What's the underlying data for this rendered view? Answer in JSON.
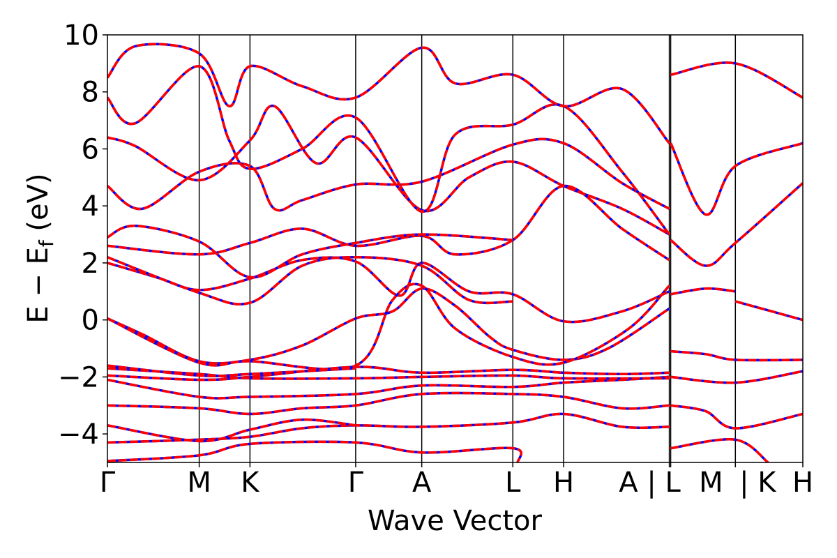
{
  "chart_data": {
    "type": "line",
    "title": "",
    "xlabel": "Wave Vector",
    "ylabel": "E − E",
    "ylabel_sub": "f",
    "ylabel_unit": " (eV)",
    "ylim": [
      -5,
      10
    ],
    "yticks": [
      {
        "value": -4,
        "label": "−4"
      },
      {
        "value": -2,
        "label": "−2"
      },
      {
        "value": 0,
        "label": "0"
      },
      {
        "value": 2,
        "label": "2"
      },
      {
        "value": 4,
        "label": "4"
      },
      {
        "value": 6,
        "label": "6"
      },
      {
        "value": 8,
        "label": "8"
      },
      {
        "value": 10,
        "label": "10"
      }
    ],
    "kpath_ticks": [
      {
        "x": 0.0,
        "label": "Γ"
      },
      {
        "x": 0.132,
        "label": "M"
      },
      {
        "x": 0.205,
        "label": "K"
      },
      {
        "x": 0.357,
        "label": "Γ"
      },
      {
        "x": 0.452,
        "label": "A"
      },
      {
        "x": 0.583,
        "label": "L"
      },
      {
        "x": 0.656,
        "label": "H"
      },
      {
        "x": 0.808,
        "label": "A | L"
      },
      {
        "x": 0.81,
        "label": "M"
      },
      {
        "x": 0.903,
        "label": "| K"
      },
      {
        "x": 1.0,
        "label": "H"
      }
    ],
    "vlines": [
      0.132,
      0.205,
      0.357,
      0.452,
      0.583,
      0.656,
      0.808,
      0.81,
      0.903
    ],
    "grid": false,
    "legend": "none",
    "series_styles": [
      {
        "color": "#0000ff",
        "dash": "solid"
      },
      {
        "color": "#ff0000",
        "dash": "dashed"
      }
    ],
    "bands": [
      [
        [
          0,
          -4.95
        ],
        [
          0.132,
          -4.75
        ],
        [
          0.205,
          -4.35
        ],
        [
          0.357,
          -4.3
        ],
        [
          0.452,
          -4.65
        ],
        [
          0.583,
          -4.5
        ],
        [
          0.59,
          -5.0
        ]
      ],
      [
        [
          0,
          -4.3
        ],
        [
          0.132,
          -4.2
        ],
        [
          0.205,
          -4.1
        ],
        [
          0.28,
          -3.8
        ],
        [
          0.357,
          -3.7
        ],
        [
          0.452,
          -3.75
        ],
        [
          0.583,
          -3.6
        ],
        [
          0.656,
          -3.3
        ],
        [
          0.74,
          -3.75
        ],
        [
          0.808,
          -3.75
        ]
      ],
      [
        [
          0,
          -3.7
        ],
        [
          0.132,
          -4.25
        ],
        [
          0.205,
          -3.85
        ],
        [
          0.28,
          -3.5
        ],
        [
          0.357,
          -3.7
        ]
      ],
      [
        [
          0,
          -3.0
        ],
        [
          0.132,
          -3.1
        ],
        [
          0.205,
          -3.3
        ],
        [
          0.28,
          -3.1
        ],
        [
          0.357,
          -3.0
        ],
        [
          0.452,
          -2.6
        ],
        [
          0.583,
          -2.6
        ],
        [
          0.656,
          -2.7
        ],
        [
          0.74,
          -3.1
        ],
        [
          0.808,
          -3.0
        ]
      ],
      [
        [
          0,
          -2.1
        ],
        [
          0.132,
          -2.7
        ],
        [
          0.205,
          -2.7
        ],
        [
          0.357,
          -2.6
        ],
        [
          0.452,
          -2.3
        ],
        [
          0.583,
          -2.35
        ],
        [
          0.656,
          -2.2
        ],
        [
          0.74,
          -2.1
        ],
        [
          0.808,
          -2.0
        ]
      ],
      [
        [
          0,
          -1.95
        ],
        [
          0.132,
          -2.1
        ],
        [
          0.205,
          -2.0
        ],
        [
          0.357,
          -1.65
        ],
        [
          0.452,
          -1.85
        ],
        [
          0.583,
          -1.75
        ],
        [
          0.656,
          -1.85
        ],
        [
          0.74,
          -1.9
        ],
        [
          0.808,
          -1.85
        ]
      ],
      [
        [
          0,
          -1.7
        ],
        [
          0.132,
          -1.9
        ],
        [
          0.205,
          -2.05
        ],
        [
          0.357,
          -2.05
        ],
        [
          0.452,
          -2.0
        ],
        [
          0.583,
          -1.95
        ],
        [
          0.656,
          -2.05
        ],
        [
          0.808,
          -2.05
        ]
      ],
      [
        [
          0,
          -1.6
        ],
        [
          0.132,
          -1.95
        ],
        [
          0.205,
          -1.9
        ],
        [
          0.357,
          -1.7
        ]
      ],
      [
        [
          0,
          0.05
        ],
        [
          0.05,
          -0.5
        ],
        [
          0.132,
          -1.45
        ],
        [
          0.205,
          -1.4
        ],
        [
          0.28,
          -0.9
        ],
        [
          0.357,
          0.05
        ],
        [
          0.41,
          0.3
        ],
        [
          0.452,
          1.1
        ],
        [
          0.5,
          0.5
        ],
        [
          0.55,
          -0.6
        ],
        [
          0.583,
          -1.05
        ],
        [
          0.656,
          -1.4
        ],
        [
          0.72,
          -1.0
        ],
        [
          0.808,
          0.4
        ]
      ],
      [
        [
          0,
          0.05
        ],
        [
          0.132,
          -1.5
        ],
        [
          0.205,
          -1.45
        ],
        [
          0.357,
          -1.6
        ],
        [
          0.41,
          0.7
        ],
        [
          0.452,
          1.2
        ],
        [
          0.5,
          -0.3
        ],
        [
          0.583,
          -1.3
        ],
        [
          0.656,
          -1.5
        ],
        [
          0.75,
          -0.3
        ],
        [
          0.808,
          1.2
        ]
      ],
      [
        [
          0,
          2.0
        ],
        [
          0.07,
          1.5
        ],
        [
          0.132,
          1.05
        ],
        [
          0.205,
          1.45
        ],
        [
          0.28,
          2.1
        ],
        [
          0.357,
          2.05
        ],
        [
          0.42,
          0.85
        ],
        [
          0.452,
          2.0
        ],
        [
          0.52,
          1.0
        ],
        [
          0.583,
          0.9
        ],
        [
          0.656,
          -0.05
        ],
        [
          0.74,
          0.3
        ],
        [
          0.808,
          1.0
        ]
      ],
      [
        [
          0,
          2.2
        ],
        [
          0.132,
          0.95
        ],
        [
          0.205,
          0.6
        ],
        [
          0.28,
          1.9
        ],
        [
          0.357,
          2.2
        ],
        [
          0.452,
          1.9
        ],
        [
          0.52,
          0.7
        ],
        [
          0.583,
          0.65
        ]
      ],
      [
        [
          0,
          2.6
        ],
        [
          0.132,
          2.3
        ],
        [
          0.205,
          2.7
        ],
        [
          0.28,
          3.2
        ],
        [
          0.357,
          2.6
        ],
        [
          0.452,
          2.95
        ],
        [
          0.5,
          2.3
        ],
        [
          0.583,
          2.8
        ],
        [
          0.656,
          4.7
        ],
        [
          0.74,
          3.2
        ],
        [
          0.808,
          2.1
        ]
      ],
      [
        [
          0,
          2.9
        ],
        [
          0.04,
          3.3
        ],
        [
          0.132,
          2.75
        ],
        [
          0.205,
          1.5
        ],
        [
          0.28,
          2.3
        ],
        [
          0.357,
          2.7
        ],
        [
          0.452,
          3.0
        ],
        [
          0.583,
          2.8
        ]
      ],
      [
        [
          0,
          4.7
        ],
        [
          0.05,
          3.9
        ],
        [
          0.132,
          5.2
        ],
        [
          0.205,
          5.4
        ],
        [
          0.24,
          3.9
        ],
        [
          0.28,
          4.2
        ],
        [
          0.357,
          4.75
        ],
        [
          0.452,
          4.85
        ],
        [
          0.583,
          6.15
        ],
        [
          0.656,
          6.2
        ],
        [
          0.74,
          4.8
        ],
        [
          0.808,
          3.9
        ]
      ],
      [
        [
          0,
          6.4
        ],
        [
          0.04,
          6.1
        ],
        [
          0.132,
          4.9
        ],
        [
          0.205,
          6.3
        ],
        [
          0.24,
          7.5
        ],
        [
          0.3,
          5.5
        ],
        [
          0.357,
          6.4
        ],
        [
          0.452,
          3.85
        ],
        [
          0.52,
          5.0
        ],
        [
          0.583,
          5.55
        ],
        [
          0.656,
          4.7
        ],
        [
          0.74,
          3.9
        ],
        [
          0.808,
          3.0
        ]
      ],
      [
        [
          0,
          7.8
        ],
        [
          0.04,
          6.9
        ],
        [
          0.132,
          8.9
        ],
        [
          0.175,
          6.3
        ],
        [
          0.205,
          5.3
        ],
        [
          0.28,
          6.0
        ],
        [
          0.357,
          7.1
        ],
        [
          0.452,
          3.8
        ],
        [
          0.5,
          6.5
        ],
        [
          0.583,
          6.85
        ],
        [
          0.656,
          7.5
        ],
        [
          0.74,
          5.2
        ],
        [
          0.808,
          3.0
        ]
      ],
      [
        [
          0,
          8.5
        ],
        [
          0.04,
          9.6
        ],
        [
          0.132,
          9.35
        ],
        [
          0.175,
          7.5
        ],
        [
          0.205,
          8.9
        ],
        [
          0.28,
          8.2
        ],
        [
          0.357,
          7.8
        ],
        [
          0.452,
          9.55
        ],
        [
          0.5,
          8.3
        ],
        [
          0.583,
          8.6
        ],
        [
          0.656,
          7.5
        ],
        [
          0.74,
          8.1
        ],
        [
          0.808,
          6.2
        ]
      ],
      [
        [
          0.81,
          2.8
        ],
        [
          0.86,
          1.9
        ],
        [
          0.903,
          2.7
        ],
        [
          1.0,
          4.8
        ]
      ],
      [
        [
          0.81,
          0.9
        ],
        [
          0.86,
          1.1
        ],
        [
          0.903,
          1.0
        ]
      ],
      [
        [
          0.903,
          0.65
        ],
        [
          1.0,
          0.0
        ]
      ],
      [
        [
          0.81,
          -1.1
        ],
        [
          0.86,
          -1.2
        ],
        [
          0.903,
          -1.4
        ],
        [
          1.0,
          -1.4
        ]
      ],
      [
        [
          0.81,
          -2.0
        ],
        [
          0.903,
          -2.2
        ],
        [
          1.0,
          -1.8
        ]
      ],
      [
        [
          0.81,
          -3.0
        ],
        [
          0.86,
          -3.2
        ],
        [
          0.903,
          -3.8
        ],
        [
          1.0,
          -3.3
        ]
      ],
      [
        [
          0.81,
          -4.5
        ],
        [
          0.903,
          -4.2
        ],
        [
          0.95,
          -5.0
        ]
      ],
      [
        [
          0.81,
          6.2
        ],
        [
          0.86,
          3.7
        ],
        [
          0.903,
          5.4
        ],
        [
          1.0,
          6.2
        ]
      ],
      [
        [
          0.81,
          8.6
        ],
        [
          0.903,
          9.0
        ],
        [
          1.0,
          7.8
        ]
      ]
    ]
  }
}
